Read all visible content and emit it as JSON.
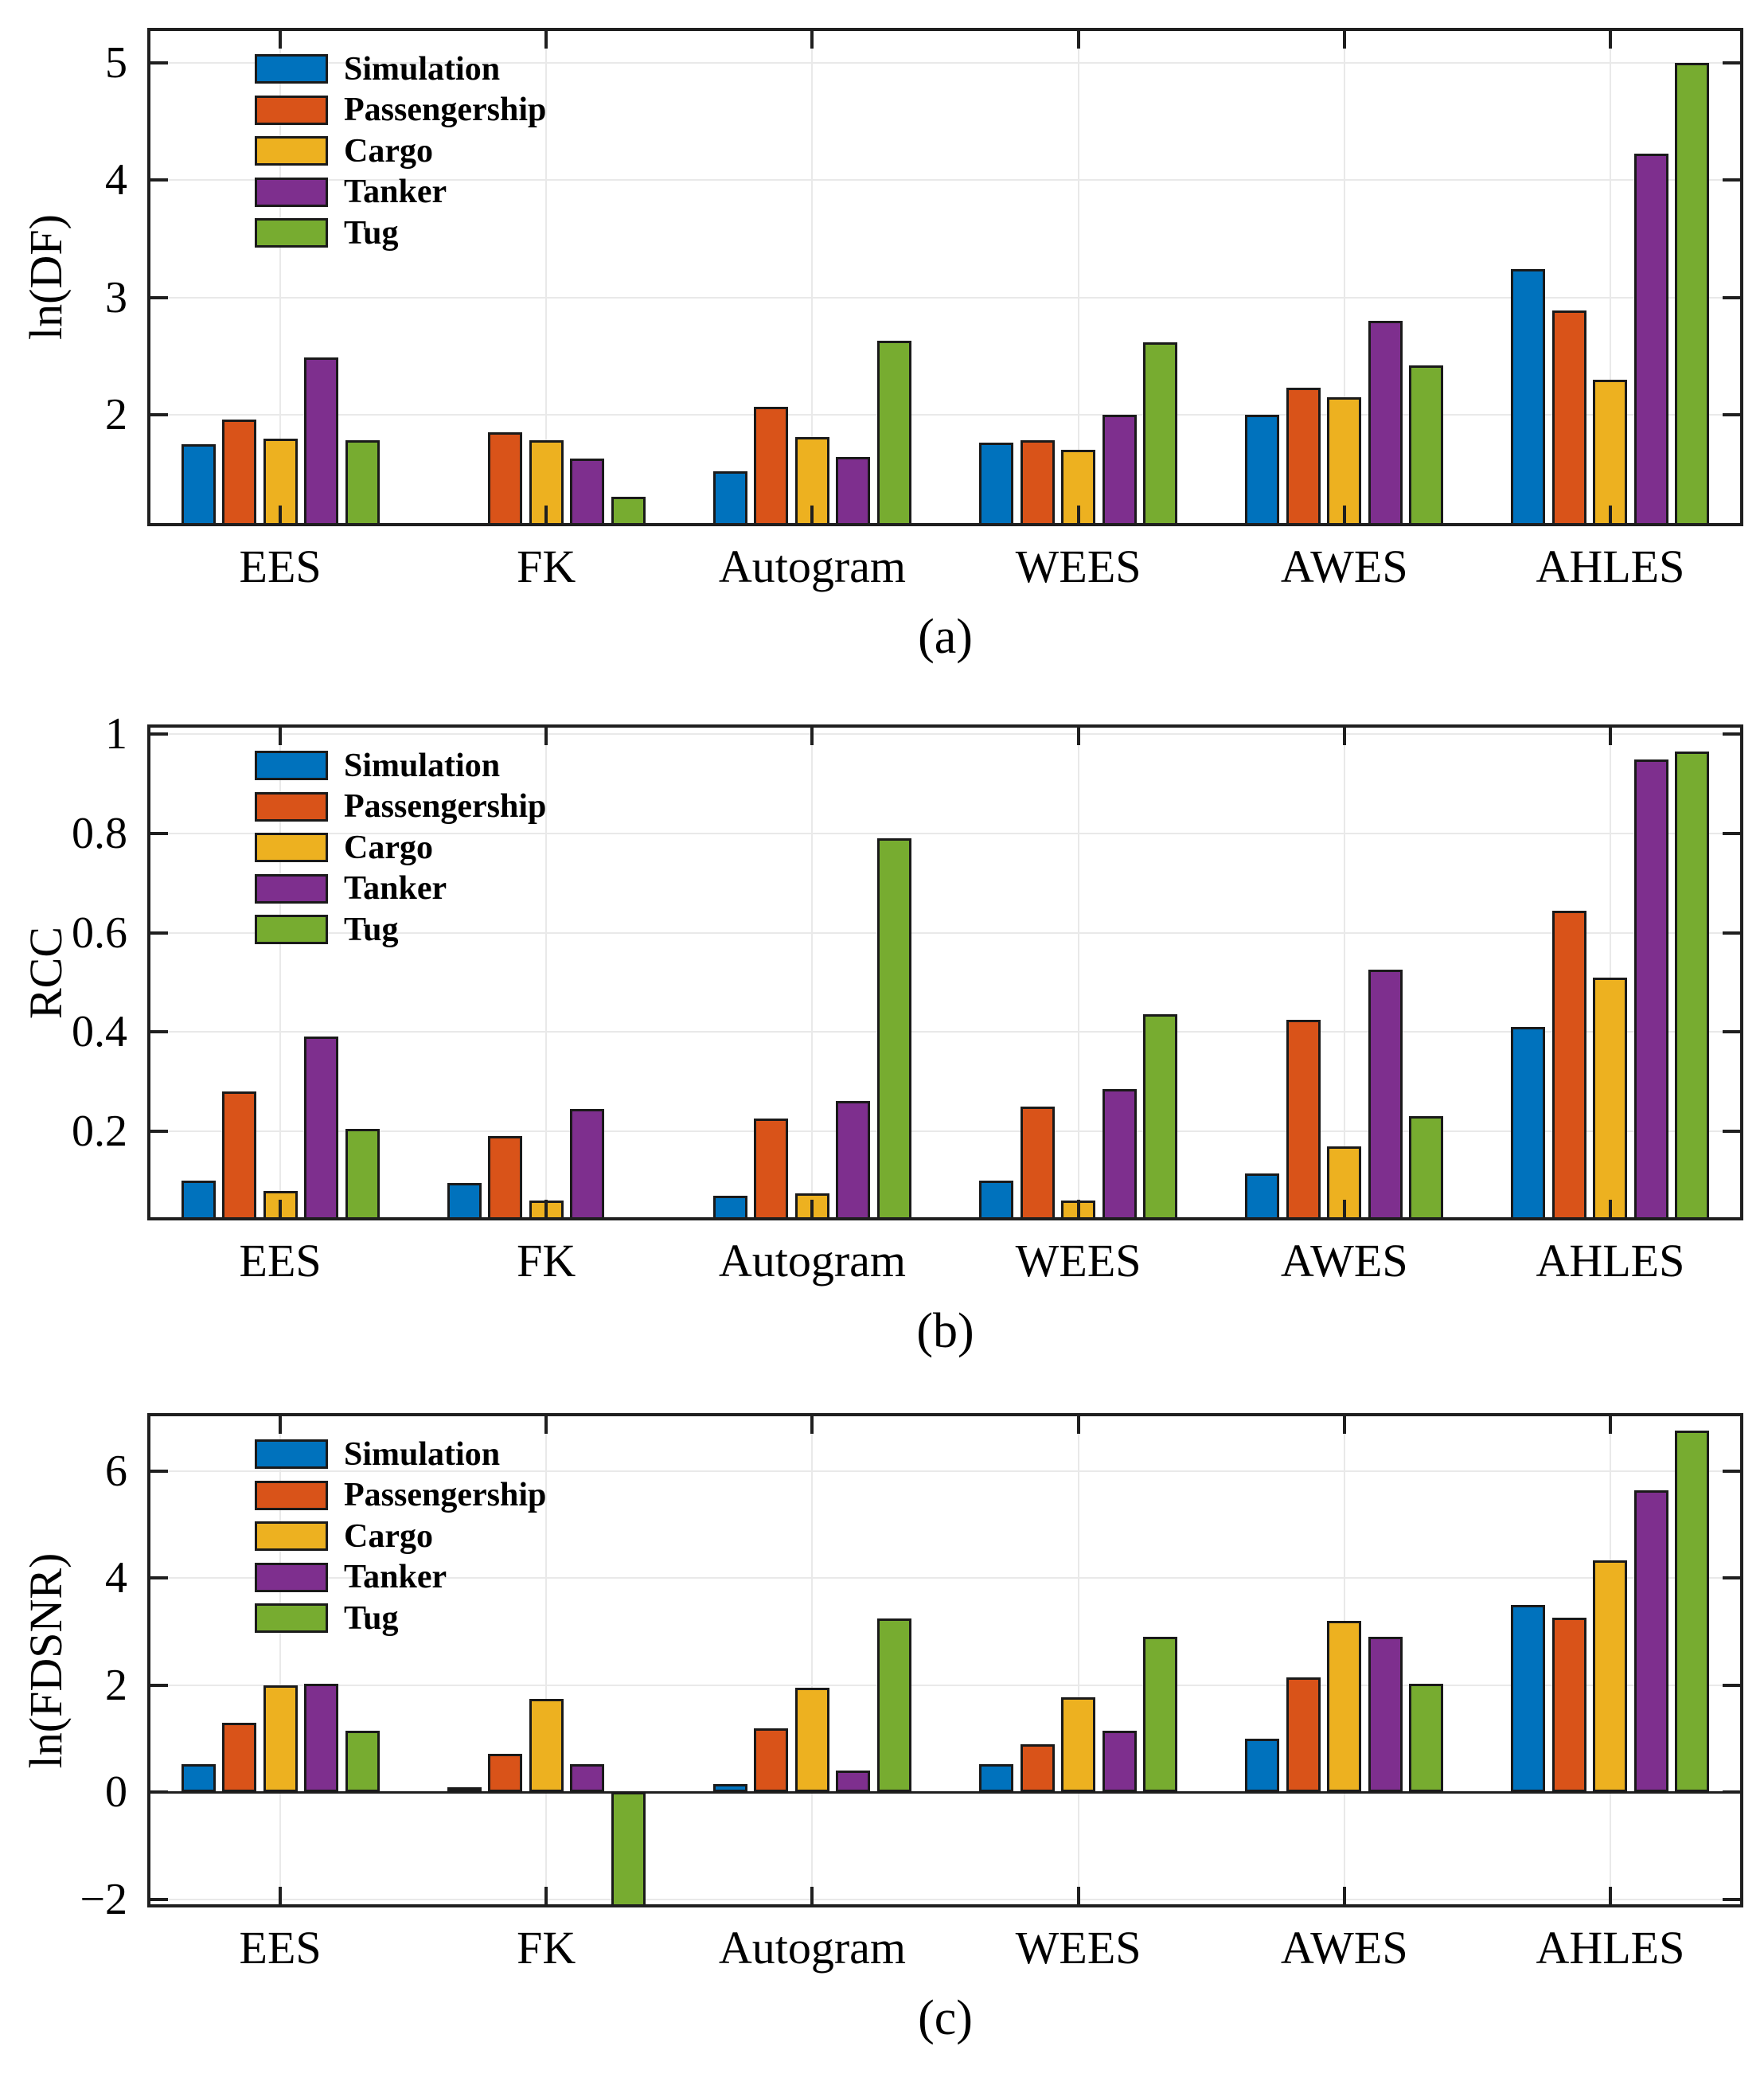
{
  "categories": [
    "EES",
    "FK",
    "Autogram",
    "WEES",
    "AWES",
    "AHLES"
  ],
  "legend": [
    {
      "label": "Simulation",
      "color": "#0072BD"
    },
    {
      "label": "Passengership",
      "color": "#D95319"
    },
    {
      "label": "Cargo",
      "color": "#EDB120"
    },
    {
      "label": "Tanker",
      "color": "#7E2F8E"
    },
    {
      "label": "Tug",
      "color": "#77AC30"
    }
  ],
  "style_colors": {
    "bar_edge": "#1a1a1a",
    "axis_frame": "#1f1f1f",
    "gridline": "#e9e9e9",
    "background": "#ffffff"
  },
  "chart_data": [
    {
      "type": "bar",
      "panel": "a",
      "caption": "(a)",
      "ylabel": "ln(DF)",
      "xlabel": "",
      "ylim": [
        1.05,
        5.3
      ],
      "yticks": [
        2,
        3,
        4,
        5
      ],
      "ytick_labels": [
        "2",
        "3",
        "4",
        "5"
      ],
      "grid": true,
      "legend_position": "top-left",
      "baseline": null,
      "categories": [
        "EES",
        "FK",
        "Autogram",
        "WEES",
        "AWES",
        "AHLES"
      ],
      "series": [
        {
          "name": "Simulation",
          "color": "#0072BD",
          "values": [
            1.75,
            null,
            1.52,
            1.76,
            2.0,
            3.24
          ]
        },
        {
          "name": "Passengership",
          "color": "#D95319",
          "values": [
            1.96,
            1.85,
            2.07,
            1.78,
            2.23,
            2.89
          ]
        },
        {
          "name": "Cargo",
          "color": "#EDB120",
          "values": [
            1.8,
            1.78,
            1.81,
            1.7,
            2.15,
            2.3
          ]
        },
        {
          "name": "Tanker",
          "color": "#7E2F8E",
          "values": [
            2.49,
            1.63,
            1.64,
            2.0,
            2.8,
            4.23
          ]
        },
        {
          "name": "Tug",
          "color": "#77AC30",
          "values": [
            1.78,
            1.3,
            2.63,
            2.62,
            2.42,
            5.0
          ]
        }
      ]
    },
    {
      "type": "bar",
      "panel": "b",
      "caption": "(b)",
      "ylabel": "RCC",
      "xlabel": "",
      "ylim": [
        0.02,
        1.02
      ],
      "yticks": [
        0.2,
        0.4,
        0.6,
        0.8,
        1.0
      ],
      "ytick_labels": [
        "0.2",
        "0.4",
        "0.6",
        "0.8",
        "1"
      ],
      "grid": true,
      "legend_position": "top-left",
      "baseline": null,
      "categories": [
        "EES",
        "FK",
        "Autogram",
        "WEES",
        "AWES",
        "AHLES"
      ],
      "series": [
        {
          "name": "Simulation",
          "color": "#0072BD",
          "values": [
            0.1,
            0.095,
            0.07,
            0.1,
            0.115,
            0.41
          ]
        },
        {
          "name": "Passengership",
          "color": "#D95319",
          "values": [
            0.28,
            0.19,
            0.225,
            0.25,
            0.425,
            0.645
          ]
        },
        {
          "name": "Cargo",
          "color": "#EDB120",
          "values": [
            0.08,
            0.06,
            0.075,
            0.06,
            0.17,
            0.51
          ]
        },
        {
          "name": "Tanker",
          "color": "#7E2F8E",
          "values": [
            0.39,
            0.245,
            0.26,
            0.285,
            0.525,
            0.95
          ]
        },
        {
          "name": "Tug",
          "color": "#77AC30",
          "values": [
            0.205,
            null,
            0.79,
            0.435,
            0.23,
            0.965
          ]
        }
      ]
    },
    {
      "type": "bar",
      "panel": "c",
      "caption": "(c)",
      "ylabel": "ln(FDSNR)",
      "xlabel": "",
      "ylim": [
        -2.15,
        7.08
      ],
      "yticks": [
        -2,
        0,
        2,
        4,
        6
      ],
      "ytick_labels": [
        "−2",
        "0",
        "2",
        "4",
        "6"
      ],
      "grid": true,
      "legend_position": "top-left",
      "baseline": 0,
      "categories": [
        "EES",
        "FK",
        "Autogram",
        "WEES",
        "AWES",
        "AHLES"
      ],
      "series": [
        {
          "name": "Simulation",
          "color": "#0072BD",
          "values": [
            0.52,
            0.1,
            0.15,
            0.53,
            1.0,
            3.5
          ]
        },
        {
          "name": "Passengership",
          "color": "#D95319",
          "values": [
            1.3,
            0.72,
            1.2,
            0.9,
            2.15,
            3.26
          ]
        },
        {
          "name": "Cargo",
          "color": "#EDB120",
          "values": [
            2.0,
            1.75,
            1.95,
            1.78,
            3.2,
            4.33
          ]
        },
        {
          "name": "Tanker",
          "color": "#7E2F8E",
          "values": [
            2.03,
            0.52,
            0.4,
            1.15,
            2.9,
            5.64
          ]
        },
        {
          "name": "Tug",
          "color": "#77AC30",
          "values": [
            1.15,
            -2.2,
            3.25,
            2.9,
            2.02,
            6.75
          ]
        }
      ]
    }
  ]
}
